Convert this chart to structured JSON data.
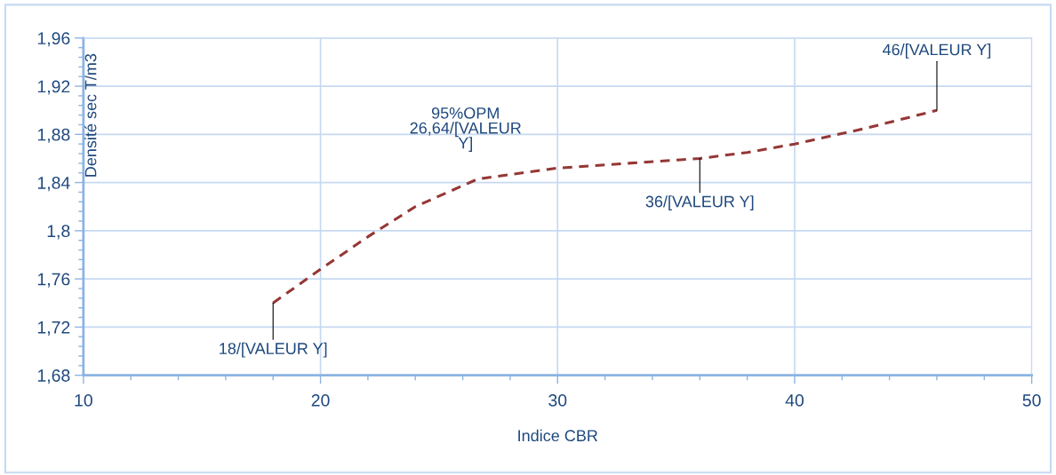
{
  "chart_data": {
    "type": "line",
    "xlabel": "Indice CBR",
    "ylabel": "Densité sec T/m3",
    "x": [
      18,
      20,
      22,
      24,
      26.64,
      30,
      33,
      36,
      38,
      40,
      43,
      46
    ],
    "series": [
      {
        "color": "#953735",
        "values": [
          1.74,
          1.768,
          1.795,
          1.82,
          1.843,
          1.852,
          1.856,
          1.86,
          1.865,
          1.872,
          1.885,
          1.9
        ]
      }
    ],
    "annotations": [
      {
        "text": "18/[VALEUR Y]",
        "x": 18,
        "y": 1.74
      },
      {
        "text": "95%OPM\n26,64/[VALEUR\nY]",
        "x": 26.64,
        "y": 1.843
      },
      {
        "text": "36/[VALEUR Y]",
        "x": 36,
        "y": 1.86
      },
      {
        "text": "46/[VALEUR Y]",
        "x": 46,
        "y": 1.9
      }
    ],
    "xlim": [
      10,
      50
    ],
    "xticks": [
      10,
      20,
      30,
      40,
      50
    ],
    "ylim": [
      1.68,
      1.96
    ],
    "yticks": [
      {
        "value": 1.68,
        "label": "1,68"
      },
      {
        "value": 1.72,
        "label": "1,72"
      },
      {
        "value": 1.76,
        "label": "1,76"
      },
      {
        "value": 1.8,
        "label": "1,8"
      },
      {
        "value": 1.84,
        "label": "1,84"
      },
      {
        "value": 1.88,
        "label": "1,88"
      },
      {
        "value": 1.92,
        "label": "1,92"
      },
      {
        "value": 1.96,
        "label": "1,96"
      }
    ],
    "grid": true,
    "legend": false,
    "marker": "none",
    "line_style": "dashed"
  }
}
